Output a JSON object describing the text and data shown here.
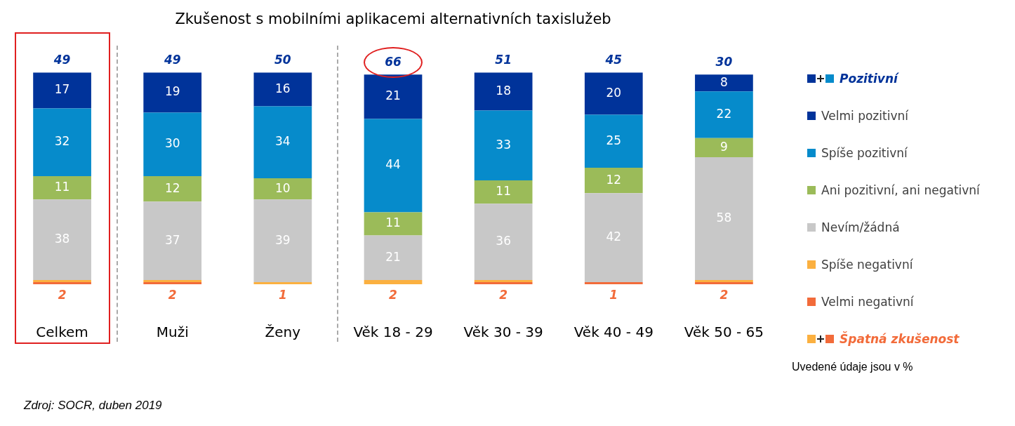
{
  "chart_data": {
    "type": "bar",
    "stacked": true,
    "title": "Zkušenost s mobilními aplikacemi alternativních taxislužeb",
    "categories": [
      "Celkem",
      "Muži",
      "Ženy",
      "Věk 18 - 29",
      "Věk 30 - 39",
      "Věk 40 - 49",
      "Věk 50 - 65"
    ],
    "ylim": [
      0,
      100
    ],
    "tick_labels": "x",
    "grid": false,
    "legend": "right",
    "data_labels": true,
    "series": [
      {
        "name": "Velmi negativní",
        "color": "#f26b3a",
        "values": [
          1,
          1,
          0,
          0,
          1,
          1,
          1
        ],
        "value_labels": [
          null,
          null,
          null,
          null,
          null,
          null,
          null
        ]
      },
      {
        "name": "Spíše negativní",
        "color": "#fbb040",
        "values": [
          1,
          1,
          1,
          2,
          1,
          0,
          1
        ],
        "value_labels": [
          null,
          null,
          null,
          null,
          null,
          null,
          null
        ]
      },
      {
        "name": "Nevím/žádná",
        "color": "#c8c8c8",
        "values": [
          38,
          37,
          39,
          21,
          36,
          42,
          58
        ]
      },
      {
        "name": "Ani pozitivní, ani negativní",
        "color": "#9bbb59",
        "values": [
          11,
          12,
          10,
          11,
          11,
          12,
          9
        ]
      },
      {
        "name": "Spíše pozitivní",
        "color": "#068bcb",
        "values": [
          32,
          30,
          34,
          44,
          33,
          25,
          22
        ]
      },
      {
        "name": "Velmi pozitivní",
        "color": "#00339a",
        "values": [
          17,
          19,
          16,
          21,
          18,
          20,
          8
        ]
      }
    ],
    "annotations": [
      "Pozitivní",
      "Špatná zkušenost",
      "Uvedené údaje jsou v %",
      "Zdroj: SOCR, duben 2019",
      {
        "text": "49",
        "x": "Celkem",
        "y": 100
      },
      {
        "text": "49",
        "x": "Muži",
        "y": 100
      },
      {
        "text": "50",
        "x": "Ženy",
        "y": 100
      },
      {
        "text": "66",
        "x": "Věk 18 - 29",
        "y": 99
      },
      {
        "text": "51",
        "x": "Věk 30 - 39",
        "y": 100
      },
      {
        "text": "45",
        "x": "Věk 40 - 49",
        "y": 100
      },
      {
        "text": "30",
        "x": "Věk 50 - 65",
        "y": 99
      },
      {
        "text": "2",
        "x": "Celkem",
        "y": 0
      },
      {
        "text": "2",
        "x": "Muži",
        "y": 0
      },
      {
        "text": "1",
        "x": "Ženy",
        "y": 0
      },
      {
        "text": "2",
        "x": "Věk 18 - 29",
        "y": 0
      },
      {
        "text": "2",
        "x": "Věk 30 - 39",
        "y": 0
      },
      {
        "text": "1",
        "x": "Věk 40 - 49",
        "y": 0
      },
      {
        "text": "2",
        "x": "Věk 50 - 65",
        "y": 0
      }
    ]
  }
}
